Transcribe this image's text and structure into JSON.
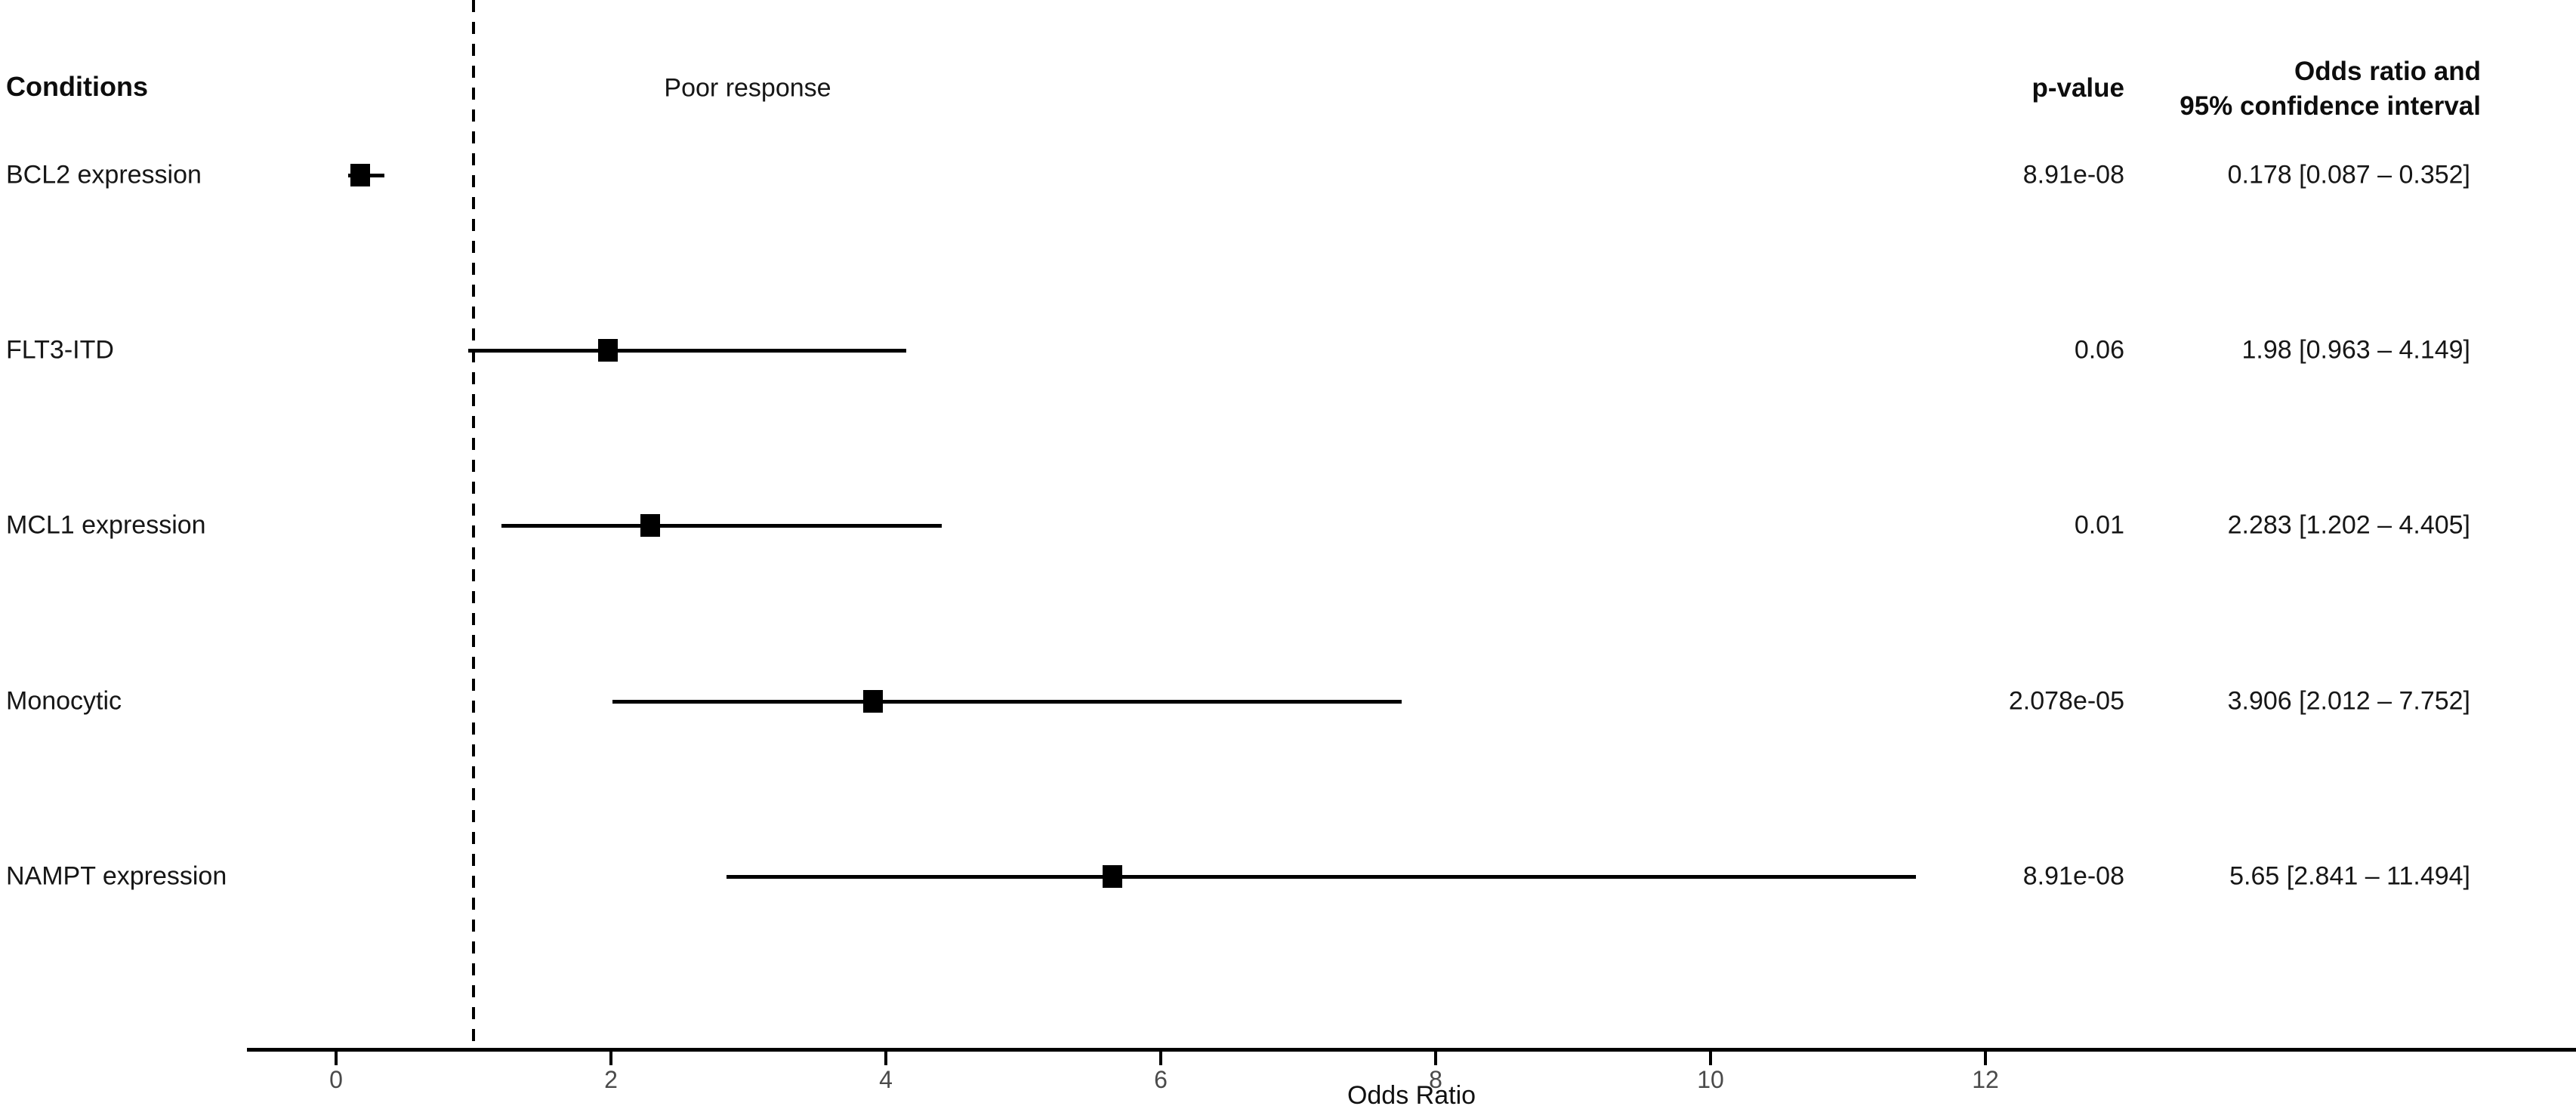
{
  "figure": {
    "conditions_header": "Conditions",
    "poor_response_label": "Poor response",
    "pvalue_header": "p-value",
    "or_header_line1": "Odds ratio and",
    "or_header_line2": "95% confidence interval"
  },
  "chart_data": {
    "type": "forest",
    "title": "",
    "xlabel": "Odds Ratio",
    "x_ticks": [
      0,
      2,
      4,
      6,
      8,
      10,
      12
    ],
    "xlim": [
      -0.65,
      16.3
    ],
    "reference_line_x": 1,
    "grid": false,
    "legend": "none",
    "effect_direction_label": "Poor response",
    "columns": [
      "Conditions",
      "p-value",
      "Odds ratio and 95% confidence interval"
    ],
    "rows": [
      {
        "condition": "BCL2 expression",
        "p_value": "8.91e-08",
        "odds_ratio": 0.178,
        "ci_low": 0.087,
        "ci_high": 0.352,
        "or_ci_text": "0.178 [0.087 – 0.352]"
      },
      {
        "condition": "FLT3-ITD",
        "p_value": "0.06",
        "odds_ratio": 1.98,
        "ci_low": 0.963,
        "ci_high": 4.149,
        "or_ci_text": "1.98 [0.963 – 4.149]"
      },
      {
        "condition": "MCL1 expression",
        "p_value": "0.01",
        "odds_ratio": 2.283,
        "ci_low": 1.202,
        "ci_high": 4.405,
        "or_ci_text": "2.283 [1.202 – 4.405]"
      },
      {
        "condition": "Monocytic",
        "p_value": "2.078e-05",
        "odds_ratio": 3.906,
        "ci_low": 2.012,
        "ci_high": 7.752,
        "or_ci_text": "3.906 [2.012 – 7.752]"
      },
      {
        "condition": "NAMPT expression",
        "p_value": "8.91e-08",
        "odds_ratio": 5.65,
        "ci_low": 2.841,
        "ci_high": 11.494,
        "or_ci_text": "5.65 [2.841 – 11.494]"
      }
    ]
  },
  "colors": {
    "marker": "#000000",
    "ci_line": "#000000",
    "axis": "#000000",
    "reference_line": "#000000",
    "tick_label": "#4a4a4a",
    "text": "#111111"
  }
}
